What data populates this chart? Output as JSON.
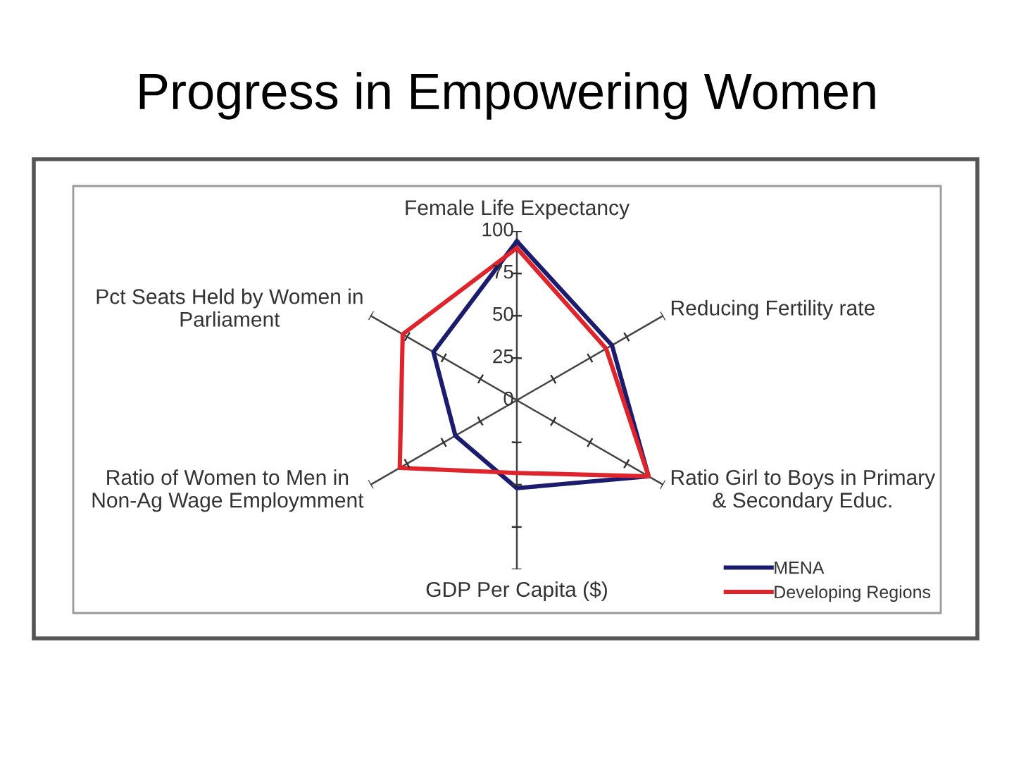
{
  "chart_data": {
    "type": "radar",
    "title": "Progress in Empowering Women",
    "categories": [
      "Female Life Expectancy",
      "Reducing Fertility rate",
      "Ratio Girl to Boys in Primary\n& Secondary Educ.",
      "GDP Per Capita ($)",
      "Ratio of Women to Men in\nNon-Ag Wage Employmment",
      "Pct Seats Held by Women in\nParliament"
    ],
    "series": [
      {
        "name": "MENA",
        "color": "#1c1c6e",
        "values": [
          94,
          65,
          90,
          52,
          42,
          57
        ]
      },
      {
        "name": "Developing Regions",
        "color": "#e0242c",
        "values": [
          90,
          61,
          90,
          43,
          80,
          78
        ]
      }
    ],
    "ylim": [
      0,
      100
    ],
    "yticks": [
      0,
      25,
      50,
      75,
      100
    ],
    "grid": "x",
    "legend": "bottom right"
  }
}
